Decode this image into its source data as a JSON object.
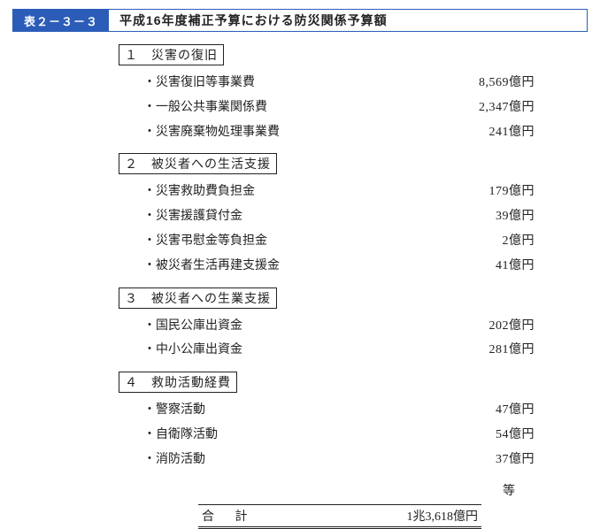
{
  "title": {
    "id": "表２－３－３",
    "text": "平成16年度補正予算における防災関係予算額"
  },
  "sections": [
    {
      "num": "１",
      "heading": "災害の復旧",
      "items": [
        {
          "label": "災害復旧等事業費",
          "amount": "8,569億円"
        },
        {
          "label": "一般公共事業関係費",
          "amount": "2,347億円"
        },
        {
          "label": "災害廃棄物処理事業費",
          "amount": "241億円"
        }
      ]
    },
    {
      "num": "２",
      "heading": "被災者への生活支援",
      "items": [
        {
          "label": "災害救助費負担金",
          "amount": "179億円"
        },
        {
          "label": "災害援護貸付金",
          "amount": "39億円"
        },
        {
          "label": "災害弔慰金等負担金",
          "amount": "2億円"
        },
        {
          "label": "被災者生活再建支援金",
          "amount": "41億円"
        }
      ]
    },
    {
      "num": "３",
      "heading": "被災者への生業支援",
      "items": [
        {
          "label": "国民公庫出資金",
          "amount": "202億円"
        },
        {
          "label": "中小公庫出資金",
          "amount": "281億円"
        }
      ]
    },
    {
      "num": "４",
      "heading": "救助活動経費",
      "items": [
        {
          "label": "警察活動",
          "amount": "47億円"
        },
        {
          "label": "自衛隊活動",
          "amount": "54億円"
        },
        {
          "label": "消防活動",
          "amount": "37億円"
        }
      ]
    }
  ],
  "etc": "等",
  "total": {
    "label": "合 計",
    "amount": "1兆3,618億円"
  }
}
